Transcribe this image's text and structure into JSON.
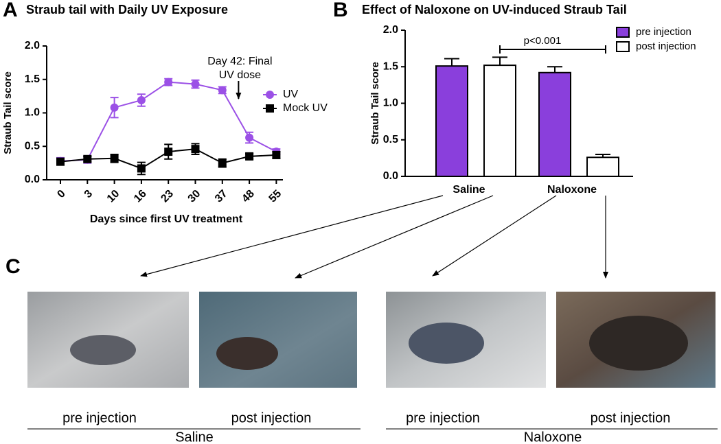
{
  "chart_data": [
    {
      "type": "line",
      "panel": "A",
      "title": "Straub tail with Daily UV Exposure",
      "x_label": "Days since first UV treatment",
      "y_label": "Straub Tail score",
      "categories": [
        "0",
        "3",
        "10",
        "16",
        "23",
        "30",
        "37",
        "48",
        "55"
      ],
      "series": [
        {
          "name": "UV",
          "color": "#9b50e6",
          "marker": "circle",
          "values": [
            0.28,
            0.3,
            1.08,
            1.19,
            1.46,
            1.43,
            1.34,
            0.63,
            0.42
          ],
          "errors": [
            0.05,
            0.05,
            0.15,
            0.09,
            0.05,
            0.06,
            0.05,
            0.08,
            0.04
          ]
        },
        {
          "name": "Mock UV",
          "color": "#000000",
          "marker": "square",
          "values": [
            0.27,
            0.31,
            0.32,
            0.17,
            0.42,
            0.46,
            0.25,
            0.35,
            0.37
          ],
          "errors": [
            0.05,
            0.04,
            0.06,
            0.09,
            0.11,
            0.08,
            0.06,
            0.04,
            0.05
          ]
        }
      ],
      "annotation": [
        "Day 42: Final",
        "UV dose"
      ],
      "ylim": [
        0,
        2
      ],
      "yticks": [
        {
          "value": 0,
          "label": "0.0"
        },
        {
          "value": 0.5,
          "label": "0.5"
        },
        {
          "value": 1,
          "label": "1.0"
        },
        {
          "value": 1.5,
          "label": "1.5"
        },
        {
          "value": 2,
          "label": "2.0"
        }
      ]
    },
    {
      "type": "bar",
      "panel": "B",
      "title": "Effect of Naloxone on UV-induced Straub Tail",
      "y_label": "Straub Tail score",
      "categories": [
        "Saline",
        "Naloxone"
      ],
      "series": [
        {
          "name": "pre injection",
          "color": "#8a3fdc",
          "values": [
            1.51,
            1.42
          ],
          "errors": [
            0.1,
            0.08
          ]
        },
        {
          "name": "post injection",
          "color": "#ffffff",
          "values": [
            1.52,
            0.26
          ],
          "errors": [
            0.11,
            0.04
          ]
        }
      ],
      "annotation": "p<0.001",
      "ylim": [
        0,
        2
      ],
      "yticks": [
        {
          "value": 0,
          "label": "0.0"
        },
        {
          "value": 0.5,
          "label": "0.5"
        },
        {
          "value": 1,
          "label": "1.0"
        },
        {
          "value": 1.5,
          "label": "1.5"
        },
        {
          "value": 2,
          "label": "2.0"
        }
      ]
    }
  ],
  "panel_c": {
    "label": "C",
    "groups": [
      {
        "name": "Saline",
        "photos": [
          "pre injection",
          "post injection"
        ]
      },
      {
        "name": "Naloxone",
        "photos": [
          "pre injection",
          "post injection"
        ]
      }
    ]
  }
}
